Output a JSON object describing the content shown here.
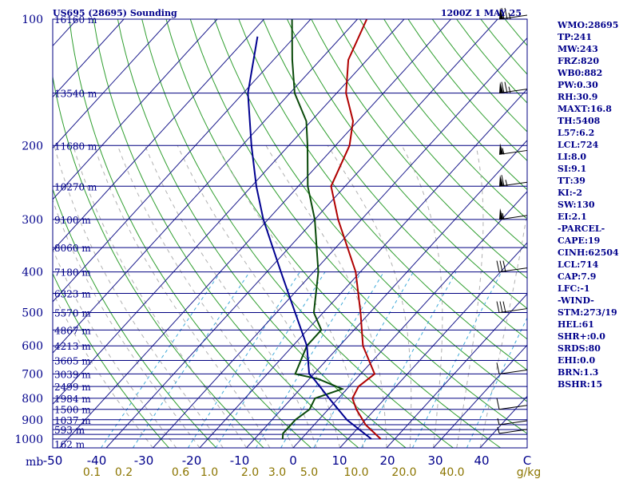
{
  "header": {
    "title": "US695 (28695) Sounding",
    "time": "1200Z  1 MAY 25"
  },
  "chart_data": {
    "type": "skew-t",
    "pressure_axis_unit": "mb",
    "pressure_levels": [
      100,
      200,
      300,
      400,
      500,
      600,
      700,
      800,
      900,
      1000
    ],
    "temperature_ticks": [
      "-50",
      "-40",
      "-30",
      "-20",
      "-10",
      "0",
      "10",
      "20",
      "30",
      "40",
      "C"
    ],
    "mixing_ratio_labels": [
      "0.1",
      "0.2",
      "0.6",
      "1.0",
      "2.0",
      "3.0",
      "5.0",
      "10.0",
      "20.0",
      "40.0",
      "g/kg"
    ],
    "height_labels": [
      "16160 m",
      "13540 m",
      "11680 m",
      "10270 m",
      "9100 m",
      "8060 m",
      "7180 m",
      "6323 m",
      "5570 m",
      "4867 m",
      "4213 m",
      "3605 m",
      "3039 m",
      "2499 m",
      "1984 m",
      "1500 m",
      "1037 m",
      "593 m",
      "162 m"
    ],
    "series": [
      {
        "label": "temperature",
        "color": "#b00000",
        "points": [
          [
            1000,
            17
          ],
          [
            925,
            11
          ],
          [
            850,
            6
          ],
          [
            800,
            3
          ],
          [
            750,
            2
          ],
          [
            700,
            3
          ],
          [
            600,
            -5
          ],
          [
            500,
            -12
          ],
          [
            400,
            -21
          ],
          [
            300,
            -35
          ],
          [
            250,
            -43
          ],
          [
            200,
            -47
          ],
          [
            175,
            -51
          ],
          [
            150,
            -58
          ],
          [
            125,
            -64
          ],
          [
            100,
            -68
          ]
        ]
      },
      {
        "label": "dewpoint",
        "color": "#0a4a0a",
        "points": [
          [
            1000,
            -4
          ],
          [
            970,
            -5
          ],
          [
            900,
            -5
          ],
          [
            850,
            -4
          ],
          [
            800,
            -5
          ],
          [
            760,
            -1
          ],
          [
            720,
            -8
          ],
          [
            700,
            -14
          ],
          [
            600,
            -17
          ],
          [
            550,
            -17
          ],
          [
            500,
            -22
          ],
          [
            400,
            -29
          ],
          [
            300,
            -40
          ],
          [
            250,
            -48
          ],
          [
            200,
            -56
          ],
          [
            175,
            -61
          ],
          [
            150,
            -69
          ],
          [
            125,
            -76
          ],
          [
            100,
            -84
          ]
        ]
      },
      {
        "label": "parcel",
        "color": "#000090",
        "points": [
          [
            1000,
            15
          ],
          [
            900,
            6
          ],
          [
            800,
            -2
          ],
          [
            720,
            -9
          ],
          [
            700,
            -11
          ],
          [
            600,
            -17
          ],
          [
            500,
            -26
          ],
          [
            400,
            -37
          ],
          [
            300,
            -51
          ],
          [
            250,
            -59
          ],
          [
            200,
            -68
          ],
          [
            150,
            -79
          ],
          [
            110,
            -88
          ]
        ]
      }
    ],
    "wind_barbs": [
      {
        "p": 100,
        "speed_kt": 75
      },
      {
        "p": 150,
        "speed_kt": 75
      },
      {
        "p": 210,
        "speed_kt": 55
      },
      {
        "p": 250,
        "speed_kt": 65
      },
      {
        "p": 300,
        "speed_kt": 55
      },
      {
        "p": 400,
        "speed_kt": 30
      },
      {
        "p": 500,
        "speed_kt": 30
      },
      {
        "p": 700,
        "speed_kt": 10
      },
      {
        "p": 850,
        "speed_kt": 10
      },
      {
        "p": 925,
        "speed_kt": 5
      },
      {
        "p": 970,
        "speed_kt": 5
      }
    ]
  },
  "indices": [
    "WMO:28695",
    "TP:241",
    "MW:243",
    "FRZ:820",
    "WB0:882",
    "PW:0.30",
    "RH:30.9",
    "MAXT:16.8",
    "TH:5408",
    "L57:6.2",
    "LCL:724",
    "LI:8.0",
    "SI:9.1",
    "TT:39",
    "KI:-2",
    "SW:130",
    "EI:2.1",
    "-PARCEL-",
    "CAPE:19",
    "CINH:62504",
    "LCL:714",
    "CAP:7.9",
    "LFC:-1",
    "-WIND-",
    "STM:273/19",
    "HEL:61",
    "SHR+:0.0",
    "SRDS:80",
    "EHI:0.0",
    "BRN:1.3",
    "BSHR:15"
  ],
  "colors": {
    "isobar": "#000080",
    "isotherm": "#1a1a8c",
    "dry_adiabat": "#2f9e2f",
    "moist_adiabat": "#b0b0b0",
    "mixing_ratio": "#3fa9d9"
  }
}
